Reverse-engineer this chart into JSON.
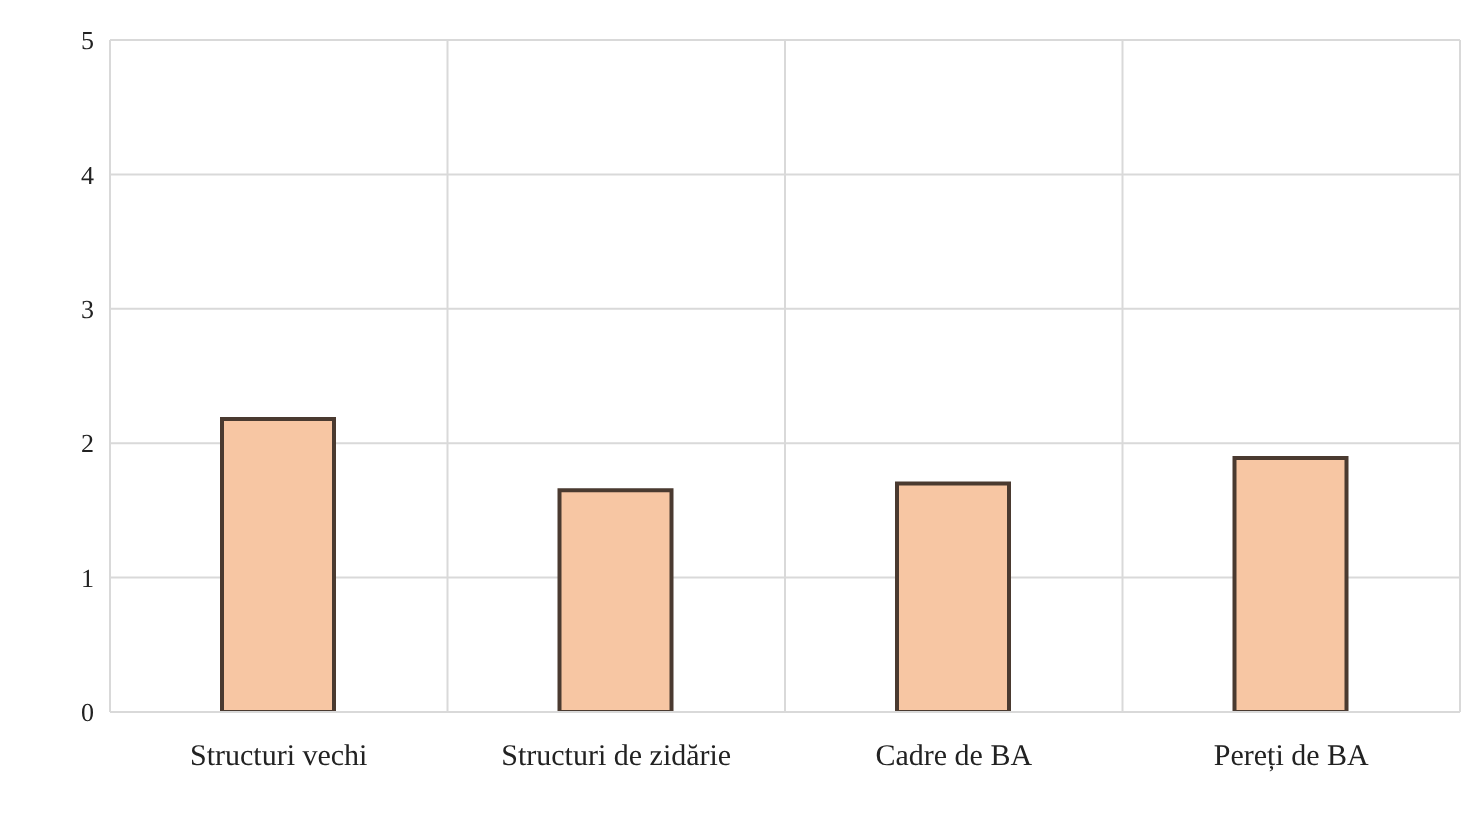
{
  "chart_data": {
    "type": "bar",
    "categories": [
      "Structuri vechi",
      "Structuri de zidărie",
      "Cadre de BA",
      "Pereți de BA"
    ],
    "values": [
      2.18,
      1.65,
      1.7,
      1.89
    ],
    "color": "#f7c6a3",
    "ylim": [
      0,
      5
    ],
    "yticks": [
      0,
      1,
      2,
      3,
      4,
      5
    ],
    "grid": true
  }
}
